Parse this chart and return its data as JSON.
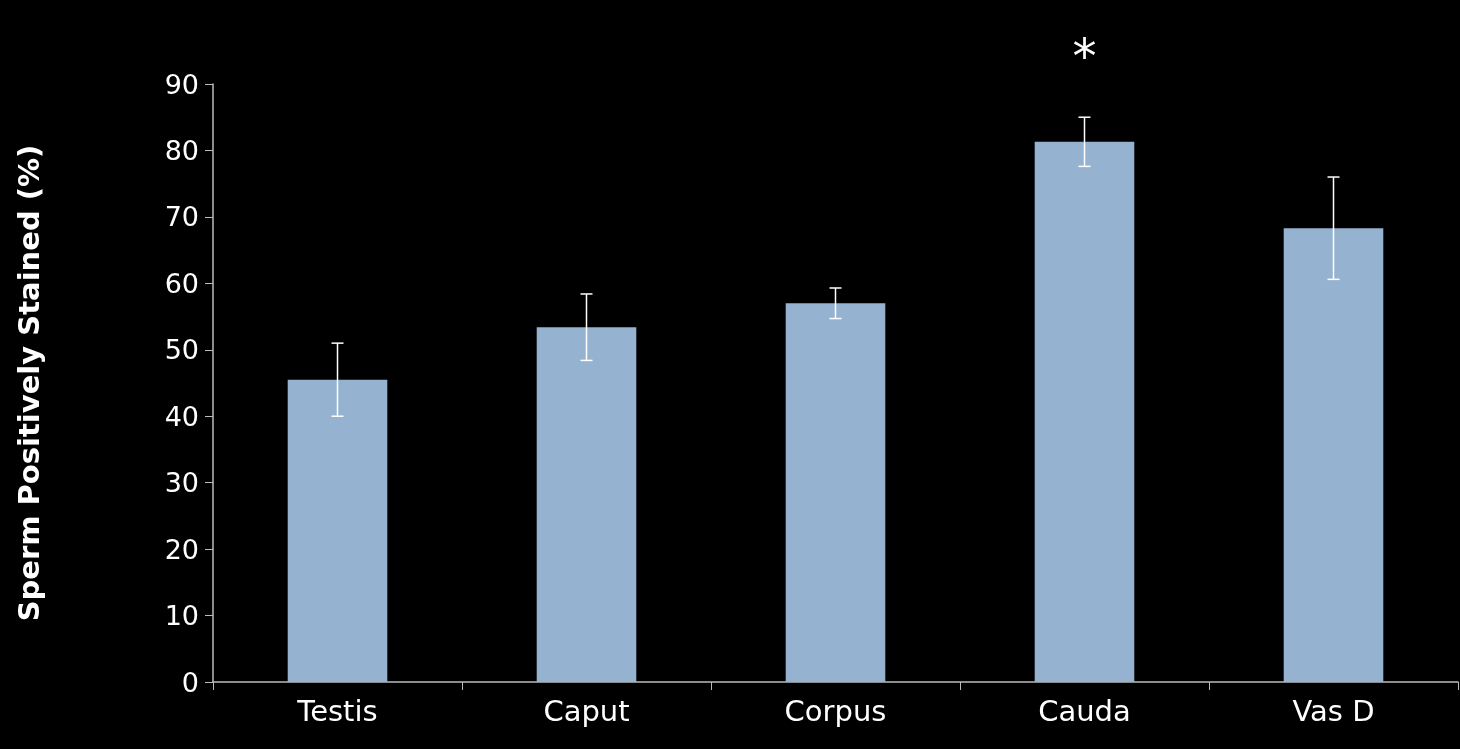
{
  "chart_data": {
    "type": "bar",
    "ylabel": "Sperm Positively Stained (%)",
    "categories": [
      "Testis",
      "Caput",
      "Corpus",
      "Cauda",
      "Vas D"
    ],
    "values": [
      45.5,
      53.4,
      57.0,
      81.3,
      68.3
    ],
    "errors": [
      5.5,
      5,
      2.3,
      3.7,
      7.7
    ],
    "color": "#95b3d0",
    "ylim": [
      0,
      90
    ],
    "yticks": [
      0,
      10,
      20,
      30,
      40,
      50,
      60,
      70,
      80,
      90
    ],
    "grid": false,
    "annotations": [
      "*"
    ]
  }
}
